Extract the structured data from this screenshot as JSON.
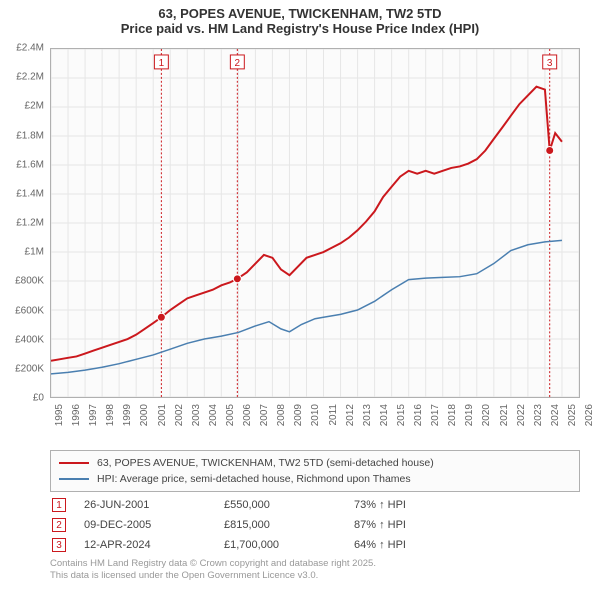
{
  "title": {
    "line1": "63, POPES AVENUE, TWICKENHAM, TW2 5TD",
    "line2": "Price paid vs. HM Land Registry's House Price Index (HPI)"
  },
  "chart": {
    "type": "line",
    "background_color": "#fbfbfb",
    "border_color": "#b0b0b0",
    "grid_color": "#e6e6e6",
    "ylim": [
      0,
      2400000
    ],
    "ytick_step": 200000,
    "ytick_labels": [
      "£0",
      "£200K",
      "£400K",
      "£600K",
      "£800K",
      "£1M",
      "£1.2M",
      "£1.4M",
      "£1.6M",
      "£1.8M",
      "£2M",
      "£2.2M",
      "£2.4M"
    ],
    "xlim": [
      1995,
      2026
    ],
    "xticks": [
      1995,
      1996,
      1997,
      1998,
      1999,
      2000,
      2001,
      2002,
      2003,
      2004,
      2005,
      2006,
      2007,
      2008,
      2009,
      2010,
      2011,
      2012,
      2013,
      2014,
      2015,
      2016,
      2017,
      2018,
      2019,
      2020,
      2021,
      2022,
      2023,
      2024,
      2025,
      2026
    ],
    "label_fontsize": 10,
    "series": [
      {
        "name": "price_paid",
        "label": "63, POPES AVENUE, TWICKENHAM, TW2 5TD (semi-detached house)",
        "color": "#cb181d",
        "line_width": 2,
        "points": [
          [
            1995.0,
            250000
          ],
          [
            1995.5,
            260000
          ],
          [
            1996.0,
            270000
          ],
          [
            1996.5,
            280000
          ],
          [
            1997.0,
            300000
          ],
          [
            1997.5,
            320000
          ],
          [
            1998.0,
            340000
          ],
          [
            1998.5,
            360000
          ],
          [
            1999.0,
            380000
          ],
          [
            1999.5,
            400000
          ],
          [
            2000.0,
            430000
          ],
          [
            2000.5,
            470000
          ],
          [
            2001.0,
            510000
          ],
          [
            2001.48,
            550000
          ],
          [
            2002.0,
            600000
          ],
          [
            2002.5,
            640000
          ],
          [
            2003.0,
            680000
          ],
          [
            2003.5,
            700000
          ],
          [
            2004.0,
            720000
          ],
          [
            2004.5,
            740000
          ],
          [
            2005.0,
            770000
          ],
          [
            2005.5,
            790000
          ],
          [
            2005.94,
            815000
          ],
          [
            2006.5,
            860000
          ],
          [
            2007.0,
            920000
          ],
          [
            2007.5,
            980000
          ],
          [
            2008.0,
            960000
          ],
          [
            2008.5,
            880000
          ],
          [
            2009.0,
            840000
          ],
          [
            2009.5,
            900000
          ],
          [
            2010.0,
            960000
          ],
          [
            2010.5,
            980000
          ],
          [
            2011.0,
            1000000
          ],
          [
            2011.5,
            1030000
          ],
          [
            2012.0,
            1060000
          ],
          [
            2012.5,
            1100000
          ],
          [
            2013.0,
            1150000
          ],
          [
            2013.5,
            1210000
          ],
          [
            2014.0,
            1280000
          ],
          [
            2014.5,
            1380000
          ],
          [
            2015.0,
            1450000
          ],
          [
            2015.5,
            1520000
          ],
          [
            2016.0,
            1560000
          ],
          [
            2016.5,
            1540000
          ],
          [
            2017.0,
            1560000
          ],
          [
            2017.5,
            1540000
          ],
          [
            2018.0,
            1560000
          ],
          [
            2018.5,
            1580000
          ],
          [
            2019.0,
            1590000
          ],
          [
            2019.5,
            1610000
          ],
          [
            2020.0,
            1640000
          ],
          [
            2020.5,
            1700000
          ],
          [
            2021.0,
            1780000
          ],
          [
            2021.5,
            1860000
          ],
          [
            2022.0,
            1940000
          ],
          [
            2022.5,
            2020000
          ],
          [
            2023.0,
            2080000
          ],
          [
            2023.5,
            2140000
          ],
          [
            2024.0,
            2120000
          ],
          [
            2024.28,
            1700000
          ],
          [
            2024.6,
            1820000
          ],
          [
            2025.0,
            1760000
          ]
        ]
      },
      {
        "name": "hpi",
        "label": "HPI: Average price, semi-detached house, Richmond upon Thames",
        "color": "#4a7fb0",
        "line_width": 1.5,
        "points": [
          [
            1995.0,
            160000
          ],
          [
            1996.0,
            170000
          ],
          [
            1997.0,
            185000
          ],
          [
            1998.0,
            205000
          ],
          [
            1999.0,
            230000
          ],
          [
            2000.0,
            260000
          ],
          [
            2001.0,
            290000
          ],
          [
            2002.0,
            330000
          ],
          [
            2003.0,
            370000
          ],
          [
            2004.0,
            400000
          ],
          [
            2005.0,
            420000
          ],
          [
            2006.0,
            445000
          ],
          [
            2007.0,
            490000
          ],
          [
            2007.8,
            520000
          ],
          [
            2008.5,
            470000
          ],
          [
            2009.0,
            450000
          ],
          [
            2009.7,
            500000
          ],
          [
            2010.5,
            540000
          ],
          [
            2011.0,
            550000
          ],
          [
            2012.0,
            570000
          ],
          [
            2013.0,
            600000
          ],
          [
            2014.0,
            660000
          ],
          [
            2015.0,
            740000
          ],
          [
            2016.0,
            810000
          ],
          [
            2017.0,
            820000
          ],
          [
            2018.0,
            825000
          ],
          [
            2019.0,
            830000
          ],
          [
            2020.0,
            850000
          ],
          [
            2021.0,
            920000
          ],
          [
            2022.0,
            1010000
          ],
          [
            2023.0,
            1050000
          ],
          [
            2024.0,
            1070000
          ],
          [
            2025.0,
            1080000
          ]
        ]
      }
    ],
    "markers": [
      {
        "num": "1",
        "x": 2001.48,
        "y": 550000,
        "color": "#cb181d"
      },
      {
        "num": "2",
        "x": 2005.94,
        "y": 815000,
        "color": "#cb181d"
      },
      {
        "num": "3",
        "x": 2024.28,
        "y": 1700000,
        "color": "#cb181d"
      }
    ]
  },
  "legend": {
    "border_color": "#b0b0b0",
    "bg_color": "#fbfbfb"
  },
  "sales": [
    {
      "num": "1",
      "date": "26-JUN-2001",
      "price": "£550,000",
      "pct": "73% ↑ HPI",
      "color": "#cb181d"
    },
    {
      "num": "2",
      "date": "09-DEC-2005",
      "price": "£815,000",
      "pct": "87% ↑ HPI",
      "color": "#cb181d"
    },
    {
      "num": "3",
      "date": "12-APR-2024",
      "price": "£1,700,000",
      "pct": "64% ↑ HPI",
      "color": "#cb181d"
    }
  ],
  "footer": {
    "line1": "Contains HM Land Registry data © Crown copyright and database right 2025.",
    "line2": "This data is licensed under the Open Government Licence v3.0."
  }
}
